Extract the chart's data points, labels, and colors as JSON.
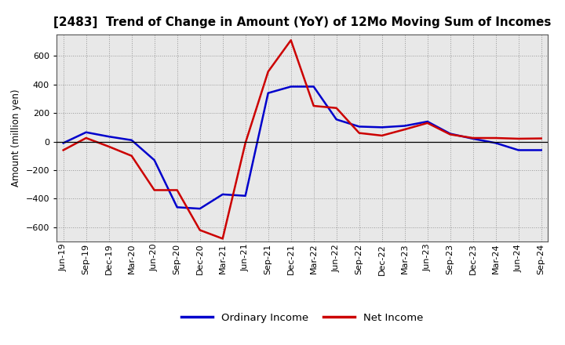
{
  "title": "[2483]  Trend of Change in Amount (YoY) of 12Mo Moving Sum of Incomes",
  "ylabel": "Amount (million yen)",
  "x_labels": [
    "Jun-19",
    "Sep-19",
    "Dec-19",
    "Mar-20",
    "Jun-20",
    "Sep-20",
    "Dec-20",
    "Mar-21",
    "Jun-21",
    "Sep-21",
    "Dec-21",
    "Mar-22",
    "Jun-22",
    "Sep-22",
    "Dec-22",
    "Mar-23",
    "Jun-23",
    "Sep-23",
    "Dec-23",
    "Mar-24",
    "Jun-24",
    "Sep-24"
  ],
  "ordinary_income": [
    -10,
    65,
    35,
    10,
    -130,
    -460,
    -470,
    -370,
    -380,
    340,
    385,
    385,
    155,
    105,
    100,
    110,
    140,
    55,
    20,
    -10,
    -60,
    -60
  ],
  "net_income": [
    -60,
    25,
    -35,
    -100,
    -340,
    -340,
    -620,
    -680,
    -10,
    490,
    710,
    250,
    235,
    60,
    42,
    85,
    130,
    50,
    25,
    25,
    20,
    22
  ],
  "ordinary_color": "#0000cc",
  "net_color": "#cc0000",
  "ylim": [
    -700,
    750
  ],
  "yticks": [
    -600,
    -400,
    -200,
    0,
    200,
    400,
    600
  ],
  "background_color": "#ffffff",
  "plot_bg_color": "#e8e8e8",
  "grid_color": "#999999",
  "line_width": 1.8,
  "legend_labels": [
    "Ordinary Income",
    "Net Income"
  ],
  "title_fontsize": 11,
  "label_fontsize": 8.5,
  "tick_fontsize": 8
}
